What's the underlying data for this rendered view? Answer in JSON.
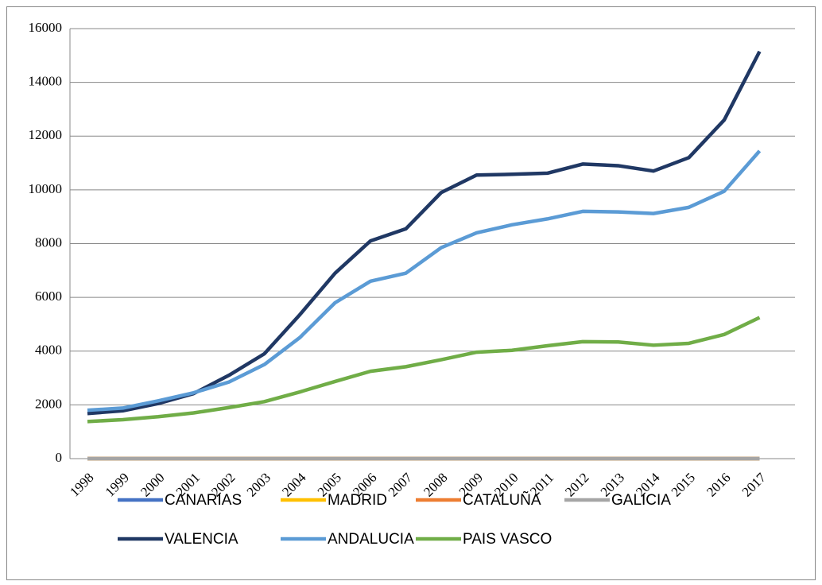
{
  "chart_data": {
    "type": "line",
    "categories": [
      "1998",
      "1999",
      "2000",
      "2001",
      "2002",
      "2003",
      "2004",
      "2005",
      "2006",
      "2007",
      "2008",
      "2009",
      "2010",
      "2011",
      "2012",
      "2013",
      "2014",
      "2015",
      "2016",
      "2017"
    ],
    "series": [
      {
        "name": "CANARIAS",
        "color": "#4472c4",
        "values": [
          0,
          0,
          0,
          0,
          0,
          0,
          0,
          0,
          0,
          0,
          0,
          0,
          0,
          0,
          0,
          0,
          0,
          0,
          0,
          0
        ]
      },
      {
        "name": "MADRID",
        "color": "#ffc000",
        "values": [
          0,
          0,
          0,
          0,
          0,
          0,
          0,
          0,
          0,
          0,
          0,
          0,
          0,
          0,
          0,
          0,
          0,
          0,
          0,
          0
        ]
      },
      {
        "name": "CATALUÑA",
        "color": "#ed7d31",
        "values": [
          0,
          0,
          0,
          0,
          0,
          0,
          0,
          0,
          0,
          0,
          0,
          0,
          0,
          0,
          0,
          0,
          0,
          0,
          0,
          0
        ]
      },
      {
        "name": "GALICIA",
        "color": "#a5a5a5",
        "values": [
          0,
          0,
          0,
          0,
          0,
          0,
          0,
          0,
          0,
          0,
          0,
          0,
          0,
          0,
          0,
          0,
          0,
          0,
          0,
          0
        ]
      },
      {
        "name": "VALENCIA",
        "color": "#203864",
        "values": [
          1680,
          1780,
          2050,
          2420,
          3100,
          3900,
          5350,
          6900,
          8100,
          8550,
          9900,
          10550,
          10580,
          10620,
          10960,
          10900,
          10700,
          11200,
          12600,
          15150
        ]
      },
      {
        "name": "ANDALUCIA",
        "color": "#5b9bd5",
        "values": [
          1800,
          1880,
          2150,
          2450,
          2850,
          3500,
          4500,
          5800,
          6600,
          6900,
          7850,
          8400,
          8700,
          8920,
          9200,
          9180,
          9120,
          9350,
          9950,
          11450
        ]
      },
      {
        "name": "PAIS VASCO",
        "color": "#70ad47",
        "values": [
          1380,
          1450,
          1560,
          1700,
          1900,
          2120,
          2480,
          2870,
          3250,
          3420,
          3680,
          3960,
          4030,
          4200,
          4350,
          4340,
          4220,
          4290,
          4620,
          5250
        ]
      }
    ],
    "ylim": [
      0,
      16000
    ],
    "yticks": [
      0,
      2000,
      4000,
      6000,
      8000,
      10000,
      12000,
      14000,
      16000
    ],
    "grid": true,
    "legend": "bottom"
  }
}
